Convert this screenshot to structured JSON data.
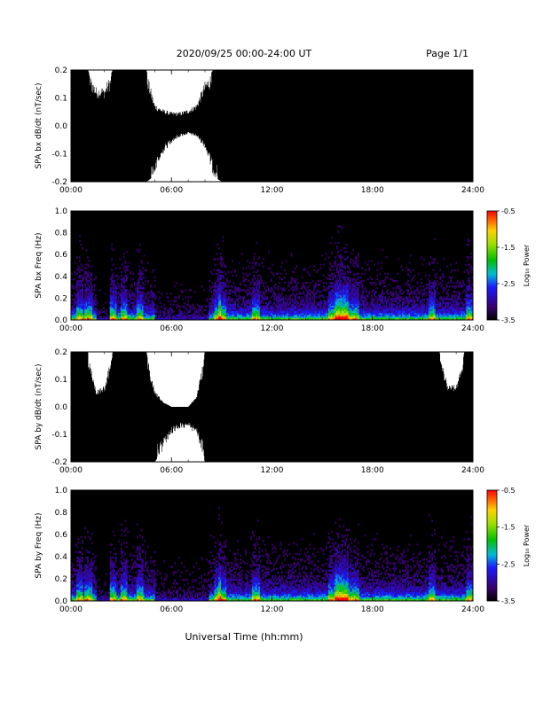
{
  "header": {
    "title": "2020/09/25  00:00-24:00 UT",
    "page": "Page 1/1"
  },
  "footer": {
    "xlabel": "Universal Time (hh:mm)"
  },
  "chart_data": [
    {
      "type": "line",
      "title": "",
      "ylabel": "SPA bx dB/dt (nT/sec)",
      "xlabel": "",
      "x_ticks": [
        "00:00",
        "06:00",
        "12:00",
        "18:00",
        "24:00"
      ],
      "xlim_hours": [
        0,
        24
      ],
      "y_ticks": [
        "-0.2",
        "-0.1",
        "0.0",
        "0.1",
        "0.2"
      ],
      "ylim": [
        -0.2,
        0.2
      ],
      "series": [
        {
          "x_hours": [
            0.0,
            0.5,
            1.0,
            1.5,
            2.0,
            2.5,
            3.0,
            3.5,
            4.0,
            4.5,
            5.0,
            5.5,
            6.0,
            6.5,
            7.0,
            7.5,
            8.0,
            8.5,
            9.0,
            9.5,
            10.0,
            10.5,
            11.0,
            11.5,
            12.0,
            12.5,
            13.0,
            13.5,
            14.0,
            14.5,
            15.0,
            15.5,
            16.0,
            16.5,
            17.0,
            17.5,
            18.0,
            18.5,
            19.0,
            19.5,
            20.0,
            20.5,
            21.0,
            21.5,
            22.0,
            22.5,
            23.0,
            23.5,
            24.0
          ],
          "envelope_upper": [
            0.2,
            0.2,
            0.2,
            0.14,
            0.14,
            0.2,
            0.2,
            0.2,
            0.2,
            0.2,
            0.08,
            0.06,
            0.05,
            0.05,
            0.06,
            0.08,
            0.16,
            0.2,
            0.2,
            0.2,
            0.2,
            0.2,
            0.2,
            0.2,
            0.2,
            0.2,
            0.2,
            0.2,
            0.2,
            0.2,
            0.2,
            0.2,
            0.2,
            0.2,
            0.2,
            0.2,
            0.2,
            0.2,
            0.2,
            0.2,
            0.2,
            0.2,
            0.2,
            0.2,
            0.2,
            0.2,
            0.2,
            0.2,
            0.2
          ],
          "envelope_lower": [
            -0.2,
            -0.2,
            -0.2,
            -0.2,
            -0.2,
            -0.2,
            -0.2,
            -0.2,
            -0.2,
            -0.2,
            -0.18,
            -0.1,
            -0.06,
            -0.04,
            -0.03,
            -0.04,
            -0.08,
            -0.18,
            -0.2,
            -0.2,
            -0.2,
            -0.2,
            -0.2,
            -0.2,
            -0.2,
            -0.2,
            -0.2,
            -0.2,
            -0.2,
            -0.2,
            -0.2,
            -0.2,
            -0.2,
            -0.2,
            -0.2,
            -0.2,
            -0.2,
            -0.2,
            -0.2,
            -0.2,
            -0.2,
            -0.2,
            -0.2,
            -0.2,
            -0.2,
            -0.2,
            -0.2,
            -0.2,
            -0.2
          ]
        }
      ]
    },
    {
      "type": "heatmap",
      "title": "",
      "ylabel": "SPA bx Freq (Hz)",
      "xlabel": "",
      "x_ticks": [
        "00:00",
        "06:00",
        "12:00",
        "18:00",
        "24:00"
      ],
      "xlim_hours": [
        0,
        24
      ],
      "y_ticks": [
        "0.0",
        "0.2",
        "0.4",
        "0.6",
        "0.8",
        "1.0"
      ],
      "ylim": [
        0,
        1
      ],
      "colorbar": {
        "label": "Log₁₀ Power",
        "ticks": [
          "-0.5",
          "-1.5",
          "-2.5",
          "-3.5"
        ],
        "range": [
          -3.5,
          -0.5
        ]
      }
    },
    {
      "type": "line",
      "title": "",
      "ylabel": "SPA by dB/dt (nT/sec)",
      "xlabel": "",
      "x_ticks": [
        "00:00",
        "06:00",
        "12:00",
        "18:00",
        "24:00"
      ],
      "xlim_hours": [
        0,
        24
      ],
      "y_ticks": [
        "-0.2",
        "-0.1",
        "0.0",
        "0.1",
        "0.2"
      ],
      "ylim": [
        -0.2,
        0.2
      ],
      "series": [
        {
          "x_hours": [
            0.0,
            0.5,
            1.0,
            1.5,
            2.0,
            2.5,
            3.0,
            3.5,
            4.0,
            4.5,
            5.0,
            5.5,
            6.0,
            6.5,
            7.0,
            7.5,
            8.0,
            8.5,
            9.0,
            9.5,
            10.0,
            10.5,
            11.0,
            11.5,
            12.0,
            12.5,
            13.0,
            13.5,
            14.0,
            14.5,
            15.0,
            15.5,
            16.0,
            16.5,
            17.0,
            17.5,
            18.0,
            18.5,
            19.0,
            19.5,
            20.0,
            20.5,
            21.0,
            21.5,
            22.0,
            22.5,
            23.0,
            23.5,
            24.0
          ],
          "envelope_upper": [
            0.2,
            0.2,
            0.2,
            0.06,
            0.08,
            0.2,
            0.2,
            0.2,
            0.2,
            0.2,
            0.06,
            0.02,
            0.0,
            0.0,
            0.0,
            0.04,
            0.2,
            0.2,
            0.2,
            0.2,
            0.2,
            0.2,
            0.2,
            0.2,
            0.2,
            0.2,
            0.2,
            0.2,
            0.2,
            0.2,
            0.2,
            0.2,
            0.2,
            0.2,
            0.2,
            0.2,
            0.2,
            0.2,
            0.2,
            0.2,
            0.2,
            0.2,
            0.2,
            0.2,
            0.2,
            0.08,
            0.08,
            0.2,
            0.2
          ],
          "envelope_lower": [
            -0.2,
            -0.2,
            -0.2,
            -0.2,
            -0.2,
            -0.2,
            -0.2,
            -0.2,
            -0.2,
            -0.2,
            -0.2,
            -0.16,
            -0.1,
            -0.08,
            -0.08,
            -0.1,
            -0.2,
            -0.2,
            -0.2,
            -0.2,
            -0.2,
            -0.2,
            -0.2,
            -0.2,
            -0.2,
            -0.2,
            -0.2,
            -0.2,
            -0.2,
            -0.2,
            -0.2,
            -0.2,
            -0.2,
            -0.2,
            -0.2,
            -0.2,
            -0.2,
            -0.2,
            -0.2,
            -0.2,
            -0.2,
            -0.2,
            -0.2,
            -0.2,
            -0.2,
            -0.2,
            -0.2,
            -0.2,
            -0.2
          ]
        }
      ]
    },
    {
      "type": "heatmap",
      "title": "",
      "ylabel": "SPA by Freq (Hz)",
      "xlabel": "",
      "x_ticks": [
        "00:00",
        "06:00",
        "12:00",
        "18:00",
        "24:00"
      ],
      "xlim_hours": [
        0,
        24
      ],
      "y_ticks": [
        "0.0",
        "0.2",
        "0.4",
        "0.6",
        "0.8",
        "1.0"
      ],
      "ylim": [
        0,
        1
      ],
      "colorbar": {
        "label": "Log₁₀ Power",
        "ticks": [
          "-0.5",
          "-1.5",
          "-2.5",
          "-3.5"
        ],
        "range": [
          -3.5,
          -0.5
        ]
      }
    }
  ]
}
